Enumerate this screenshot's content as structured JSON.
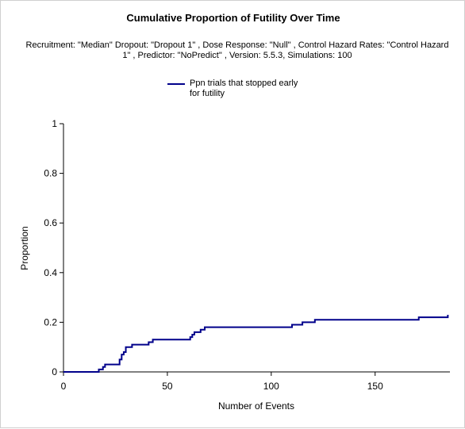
{
  "chart_data": {
    "type": "line",
    "title": "Cumulative Proportion of Futility Over Time",
    "subtitle": "Recruitment: \"Median\" Dropout: \"Dropout 1\" , Dose Response: \"Null\" , Control Hazard Rates: \"Control Hazard 1\" , Predictor: \"NoPredict\" , Version: 5.5.3, Simulations: 100",
    "xlabel": "Number of Events",
    "ylabel": "Proportion",
    "xlim": [
      0,
      186
    ],
    "ylim": [
      0,
      1
    ],
    "xticks": [
      "0",
      "50",
      "100",
      "150"
    ],
    "xtick_values": [
      0,
      50,
      100,
      150
    ],
    "yticks": [
      "0",
      "0.2",
      "0.4",
      "0.6",
      "0.8",
      "1"
    ],
    "ytick_values": [
      0,
      0.2,
      0.4,
      0.6,
      0.8,
      1
    ],
    "grid": false,
    "legend_position": "top-center",
    "series": [
      {
        "name": "Ppn trials that stopped early for futility",
        "color": "#00008b",
        "step": true,
        "x": [
          0,
          17,
          19,
          20,
          27,
          28,
          29,
          30,
          33,
          41,
          43,
          61,
          62,
          63,
          66,
          68,
          110,
          115,
          121,
          171,
          185
        ],
        "y": [
          0,
          0.01,
          0.02,
          0.03,
          0.05,
          0.07,
          0.08,
          0.1,
          0.11,
          0.12,
          0.13,
          0.14,
          0.15,
          0.16,
          0.17,
          0.18,
          0.19,
          0.2,
          0.21,
          0.22,
          0.23
        ]
      }
    ]
  }
}
